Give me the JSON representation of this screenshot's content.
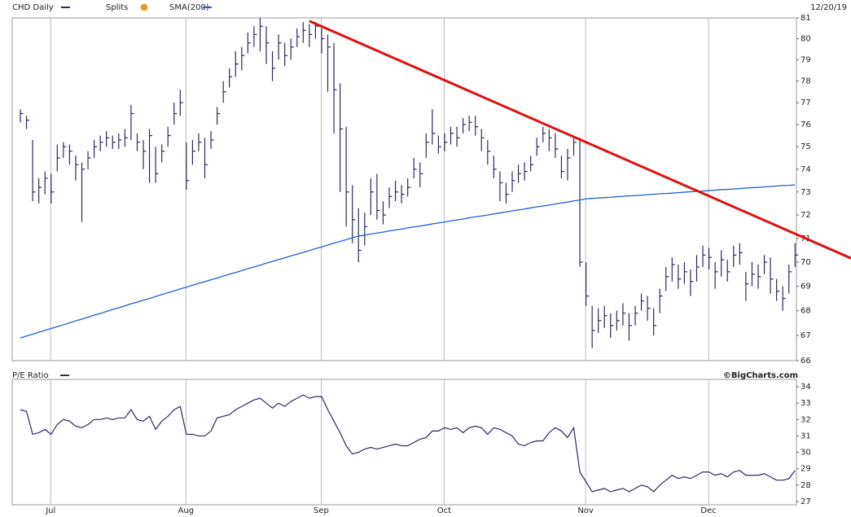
{
  "chart_data": [
    {
      "type": "ohlc",
      "title": "CHD Daily",
      "date": "12/20/19",
      "splits_label": "Splits",
      "log": true,
      "grid": "x",
      "ylim": [
        66,
        81
      ],
      "yticks": [
        66,
        67,
        68,
        69,
        70,
        71,
        72,
        73,
        74,
        75,
        76,
        77,
        78,
        79,
        80,
        81
      ],
      "series": [
        {
          "name": "CHD Daily",
          "color": "#2b2b5e",
          "values": [
            76.5,
            76.2,
            73.0,
            73.2,
            73.6,
            73.0,
            74.5,
            75.0,
            74.8,
            74.2,
            74.0,
            74.5,
            75.0,
            75.2,
            75.4,
            75.2,
            75.3,
            75.4,
            76.5,
            75.2,
            74.8,
            75.5,
            73.8,
            74.8,
            75.5,
            76.5,
            77.0,
            73.5,
            74.8,
            75.2,
            74.2,
            75.3,
            76.5,
            77.5,
            78.2,
            78.8,
            79.2,
            79.8,
            80.2,
            80.6,
            79.8,
            78.6,
            79.8,
            79.2,
            79.6,
            80.1,
            80.4,
            80.2,
            80.6,
            80.0,
            79.6,
            77.6,
            75.8,
            73.0,
            71.8,
            70.5,
            71.5,
            73.0,
            72.2,
            72.0,
            72.8,
            73.0,
            72.9,
            73.2,
            74.0,
            73.8,
            75.2,
            75.6,
            75.0,
            75.2,
            75.6,
            75.4,
            76.0,
            76.1,
            75.9,
            75.4,
            74.8,
            74.0,
            73.4,
            72.9,
            73.5,
            73.8,
            73.9,
            74.2,
            75.0,
            75.6,
            75.4,
            74.9,
            73.9,
            74.5,
            75.2,
            70.0,
            68.6,
            67.2,
            67.6,
            67.8,
            67.4,
            67.6,
            67.9,
            67.4,
            67.9,
            68.4,
            68.1,
            67.4,
            68.6,
            69.4,
            69.9,
            69.3,
            69.6,
            69.2,
            69.8,
            70.3,
            70.2,
            69.6,
            70.1,
            69.6,
            70.3,
            70.4,
            69.1,
            69.5,
            69.4,
            70.0,
            69.3,
            68.8,
            68.5,
            69.6,
            70.3
          ],
          "high": [
            76.7,
            76.4,
            75.3,
            73.6,
            73.9,
            73.8,
            75.1,
            75.2,
            75.1,
            74.6,
            74.3,
            74.8,
            75.3,
            75.5,
            75.7,
            75.5,
            75.6,
            75.8,
            76.9,
            75.6,
            75.3,
            75.8,
            75.0,
            75.1,
            75.9,
            77.0,
            77.6,
            75.2,
            75.3,
            75.6,
            75.4,
            75.7,
            76.8,
            78.0,
            78.6,
            79.4,
            79.6,
            80.3,
            80.6,
            81.0,
            80.6,
            79.4,
            80.2,
            79.8,
            80.0,
            80.5,
            80.8,
            80.7,
            80.8,
            80.5,
            80.2,
            79.8,
            77.9,
            75.9,
            73.3,
            72.3,
            72.1,
            73.6,
            73.8,
            72.6,
            73.2,
            73.5,
            73.3,
            73.6,
            74.5,
            74.3,
            75.6,
            76.7,
            75.5,
            75.6,
            75.9,
            75.9,
            76.3,
            76.4,
            76.4,
            75.8,
            75.3,
            74.6,
            73.9,
            73.4,
            73.9,
            74.2,
            74.3,
            74.6,
            75.4,
            75.9,
            75.8,
            75.6,
            74.6,
            74.9,
            75.5,
            75.4,
            70.0,
            68.2,
            68.1,
            68.2,
            67.9,
            68.0,
            68.3,
            67.9,
            68.2,
            68.7,
            68.6,
            68.1,
            68.9,
            69.8,
            70.2,
            69.9,
            70.0,
            69.7,
            70.3,
            70.7,
            70.6,
            70.0,
            70.5,
            70.1,
            70.7,
            70.8,
            69.6,
            70.0,
            69.9,
            70.3,
            70.2,
            69.3,
            69.0,
            69.9,
            70.8
          ],
          "low": [
            76.1,
            75.8,
            72.6,
            72.5,
            72.9,
            72.5,
            73.9,
            74.5,
            74.2,
            73.5,
            71.7,
            74.0,
            74.5,
            74.8,
            75.0,
            74.9,
            74.9,
            75.0,
            75.3,
            74.8,
            74.0,
            73.4,
            73.4,
            74.3,
            75.0,
            76.0,
            76.4,
            73.1,
            74.2,
            74.8,
            73.6,
            74.9,
            76.0,
            77.0,
            77.7,
            78.2,
            78.5,
            79.3,
            79.6,
            79.4,
            78.8,
            78.0,
            79.0,
            78.7,
            79.0,
            79.6,
            79.8,
            79.6,
            80.0,
            79.3,
            77.5,
            75.6,
            73.0,
            71.5,
            70.8,
            70.0,
            70.7,
            72.0,
            71.8,
            71.6,
            72.3,
            72.6,
            72.5,
            72.8,
            73.6,
            73.2,
            74.5,
            75.1,
            74.7,
            74.8,
            75.1,
            75.0,
            75.6,
            75.7,
            75.5,
            74.8,
            74.2,
            73.6,
            72.6,
            72.5,
            73.0,
            73.4,
            73.5,
            73.9,
            74.6,
            75.2,
            74.8,
            74.5,
            73.6,
            73.5,
            74.6,
            69.8,
            68.2,
            66.5,
            67.1,
            67.3,
            66.9,
            67.2,
            67.4,
            66.8,
            67.4,
            68.0,
            67.6,
            67.0,
            67.9,
            68.8,
            69.2,
            68.9,
            69.1,
            68.6,
            69.2,
            69.8,
            69.7,
            68.9,
            69.4,
            69.2,
            69.8,
            69.9,
            68.4,
            69.0,
            68.9,
            69.5,
            68.7,
            68.4,
            68.0,
            68.7,
            69.8
          ]
        },
        {
          "name": "SMA(200)",
          "color": "#1f5fd6",
          "values": [
            66.9,
            66.98,
            67.05,
            67.13,
            67.21,
            67.28,
            67.36,
            67.43,
            67.51,
            67.59,
            67.66,
            67.74,
            67.82,
            67.89,
            67.97,
            68.05,
            68.12,
            68.2,
            68.28,
            68.35,
            68.43,
            68.5,
            68.58,
            68.66,
            68.73,
            68.81,
            68.89,
            68.96,
            69.04,
            69.12,
            69.19,
            69.27,
            69.34,
            69.42,
            69.5,
            69.57,
            69.65,
            69.73,
            69.8,
            69.88,
            69.96,
            70.03,
            70.11,
            70.18,
            70.26,
            70.34,
            70.41,
            70.49,
            70.57,
            70.64,
            70.72,
            70.8,
            70.87,
            70.95,
            71.03,
            71.1,
            71.14,
            71.19,
            71.23,
            71.27,
            71.32,
            71.36,
            71.4,
            71.45,
            71.49,
            71.53,
            71.57,
            71.62,
            71.66,
            71.7,
            71.75,
            71.79,
            71.83,
            71.88,
            71.92,
            71.96,
            72.0,
            72.05,
            72.09,
            72.13,
            72.18,
            72.22,
            72.26,
            72.31,
            72.35,
            72.39,
            72.43,
            72.48,
            72.52,
            72.56,
            72.61,
            72.65,
            72.7,
            72.72,
            72.74,
            72.75,
            72.77,
            72.79,
            72.81,
            72.83,
            72.84,
            72.86,
            72.88,
            72.9,
            72.92,
            72.93,
            72.95,
            72.97,
            72.99,
            73.01,
            73.02,
            73.04,
            73.06,
            73.08,
            73.1,
            73.11,
            73.13,
            73.15,
            73.17,
            73.19,
            73.2,
            73.22,
            73.24,
            73.26,
            73.28,
            73.29,
            73.31
          ]
        }
      ],
      "trendline": {
        "color": "#e01010",
        "values": [
          null,
          null,
          null,
          null,
          null,
          null,
          null,
          null,
          null,
          null,
          null,
          null,
          null,
          null,
          null,
          null,
          null,
          null,
          null,
          null,
          null,
          null,
          null,
          null,
          null,
          null,
          null,
          null,
          null,
          null,
          null,
          null,
          null,
          null,
          null,
          null,
          null,
          null,
          null,
          null,
          null,
          null,
          null,
          null,
          null,
          null,
          null,
          80.85,
          null,
          null,
          null,
          null,
          null,
          null,
          null,
          null,
          null,
          null,
          null,
          null,
          null,
          null,
          null,
          null,
          null,
          null,
          null,
          null,
          null,
          null,
          null,
          null,
          null,
          null,
          null,
          null,
          null,
          null,
          null,
          null,
          null,
          null,
          null,
          null,
          null,
          null,
          null,
          null,
          null,
          null,
          null,
          null,
          null,
          null,
          null,
          null,
          null,
          null,
          null,
          null,
          null,
          null,
          null,
          null,
          null,
          null,
          null,
          null,
          null,
          null,
          null,
          null,
          null,
          null,
          null,
          null,
          null,
          null,
          null,
          null,
          null,
          null,
          null,
          null,
          null,
          null,
          71.2
        ]
      }
    },
    {
      "type": "line",
      "title": "P/E Ratio",
      "credit": "©BigCharts.com",
      "color": "#2b2b5e",
      "grid": "x",
      "ylim": [
        26.8,
        34.45
      ],
      "yticks": [
        27,
        28,
        29,
        30,
        31,
        32,
        33,
        34
      ],
      "categories": [
        null,
        null,
        null,
        null,
        null,
        "Jul",
        null,
        null,
        null,
        null,
        null,
        null,
        null,
        null,
        null,
        null,
        null,
        null,
        null,
        null,
        null,
        null,
        null,
        null,
        null,
        null,
        null,
        "Aug",
        null,
        null,
        null,
        null,
        null,
        null,
        null,
        null,
        null,
        null,
        null,
        null,
        null,
        null,
        null,
        null,
        null,
        null,
        null,
        null,
        null,
        "Sep",
        null,
        null,
        null,
        null,
        null,
        null,
        null,
        null,
        null,
        null,
        null,
        null,
        null,
        null,
        null,
        null,
        null,
        null,
        null,
        "Oct",
        null,
        null,
        null,
        null,
        null,
        null,
        null,
        null,
        null,
        null,
        null,
        null,
        null,
        null,
        null,
        null,
        null,
        null,
        null,
        null,
        null,
        null,
        "Nov",
        null,
        null,
        null,
        null,
        null,
        null,
        null,
        null,
        null,
        null,
        null,
        null,
        null,
        null,
        null,
        null,
        null,
        null,
        null,
        "Dec",
        null,
        null,
        null,
        null,
        null,
        null,
        null,
        null,
        null,
        null,
        null,
        null,
        null,
        null
      ],
      "values": [
        32.6,
        32.5,
        31.1,
        31.2,
        31.4,
        31.1,
        31.7,
        32.0,
        31.9,
        31.6,
        31.5,
        31.7,
        32.0,
        32.0,
        32.1,
        32.0,
        32.1,
        32.1,
        32.6,
        32.0,
        31.9,
        32.2,
        31.4,
        31.9,
        32.2,
        32.6,
        32.8,
        31.1,
        31.1,
        31.0,
        31.0,
        31.3,
        32.1,
        32.2,
        32.3,
        32.6,
        32.8,
        33.0,
        33.2,
        33.3,
        33.0,
        32.7,
        33.0,
        32.8,
        33.1,
        33.3,
        33.5,
        33.3,
        33.4,
        33.4,
        32.6,
        31.9,
        31.2,
        30.4,
        29.9,
        30.0,
        30.2,
        30.3,
        30.2,
        30.3,
        30.4,
        30.5,
        30.4,
        30.4,
        30.6,
        30.8,
        30.9,
        31.3,
        31.3,
        31.5,
        31.4,
        31.5,
        31.2,
        31.5,
        31.6,
        31.5,
        31.1,
        31.5,
        31.4,
        31.2,
        31.0,
        30.5,
        30.4,
        30.6,
        30.7,
        30.7,
        31.2,
        31.5,
        31.3,
        30.9,
        31.5,
        28.8,
        28.2,
        27.6,
        27.7,
        27.8,
        27.6,
        27.7,
        27.8,
        27.6,
        27.8,
        28.0,
        27.9,
        27.6,
        28.0,
        28.3,
        28.6,
        28.4,
        28.5,
        28.4,
        28.6,
        28.8,
        28.8,
        28.6,
        28.7,
        28.5,
        28.8,
        28.9,
        28.6,
        28.6,
        28.6,
        28.7,
        28.5,
        28.3,
        28.3,
        28.4,
        28.9
      ]
    }
  ]
}
